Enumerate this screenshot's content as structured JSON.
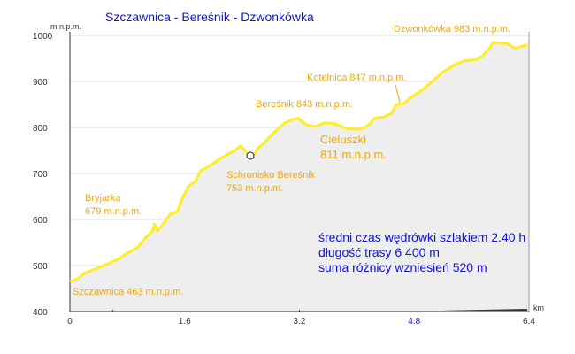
{
  "chart_data": {
    "type": "area",
    "title": "Szczawnica - Bereśnik - Dzwonkówka",
    "ylabel": "m n.p.m.",
    "xlabel": "km",
    "xlim": [
      0,
      6.4
    ],
    "ylim": [
      400,
      1000
    ],
    "x_ticks": [
      "0",
      "1.6",
      "3.2",
      "4.8",
      "6.4"
    ],
    "y_ticks": [
      "400",
      "500",
      "600",
      "700",
      "800",
      "900",
      "1000"
    ],
    "grid": "horizontal",
    "colors": {
      "line": "#FFEE22",
      "fill": "#EEEEEE",
      "labels": "#F2A900",
      "info": "#1010D8",
      "title": "#1010D8",
      "axis": "#333333",
      "grid": "#DDDDDD"
    },
    "profile": [
      [
        0.0,
        465
      ],
      [
        0.1,
        470
      ],
      [
        0.2,
        483
      ],
      [
        0.35,
        492
      ],
      [
        0.5,
        502
      ],
      [
        0.65,
        512
      ],
      [
        0.8,
        527
      ],
      [
        0.95,
        540
      ],
      [
        1.05,
        560
      ],
      [
        1.15,
        575
      ],
      [
        1.18,
        590
      ],
      [
        1.22,
        575
      ],
      [
        1.3,
        590
      ],
      [
        1.4,
        612
      ],
      [
        1.5,
        617
      ],
      [
        1.55,
        640
      ],
      [
        1.65,
        672
      ],
      [
        1.75,
        683
      ],
      [
        1.82,
        706
      ],
      [
        1.9,
        712
      ],
      [
        2.0,
        722
      ],
      [
        2.1,
        733
      ],
      [
        2.2,
        742
      ],
      [
        2.3,
        750
      ],
      [
        2.38,
        760
      ],
      [
        2.45,
        748
      ],
      [
        2.55,
        735
      ],
      [
        2.62,
        755
      ],
      [
        2.72,
        768
      ],
      [
        2.8,
        782
      ],
      [
        2.9,
        797
      ],
      [
        3.0,
        810
      ],
      [
        3.1,
        817
      ],
      [
        3.18,
        820
      ],
      [
        3.3,
        805
      ],
      [
        3.42,
        802
      ],
      [
        3.55,
        810
      ],
      [
        3.7,
        808
      ],
      [
        3.8,
        800
      ],
      [
        3.95,
        796
      ],
      [
        4.05,
        796
      ],
      [
        4.15,
        803
      ],
      [
        4.25,
        820
      ],
      [
        4.38,
        823
      ],
      [
        4.48,
        830
      ],
      [
        4.55,
        850
      ],
      [
        4.65,
        852
      ],
      [
        4.75,
        865
      ],
      [
        4.9,
        880
      ],
      [
        5.05,
        900
      ],
      [
        5.2,
        920
      ],
      [
        5.35,
        935
      ],
      [
        5.5,
        945
      ],
      [
        5.65,
        947
      ],
      [
        5.75,
        955
      ],
      [
        5.85,
        972
      ],
      [
        5.9,
        985
      ],
      [
        6.0,
        983
      ],
      [
        6.1,
        982
      ],
      [
        6.2,
        972
      ],
      [
        6.3,
        976
      ],
      [
        6.4,
        980
      ]
    ],
    "annotations": [
      {
        "id": "szczawnica",
        "lines": [
          "Szczawnica 463 m.n.p.m."
        ]
      },
      {
        "id": "bryjarka",
        "lines": [
          "Bryjarka",
          "679 m.n.p.m."
        ]
      },
      {
        "id": "schronisko",
        "lines": [
          "Schronisko Bereśnik",
          "753 m.n.p.m."
        ]
      },
      {
        "id": "beresnik",
        "lines": [
          "Bereśnik 843 m.n.p.m."
        ]
      },
      {
        "id": "cieluszki",
        "lines": [
          "Cieluszki",
          "811 m.n.p.m."
        ]
      },
      {
        "id": "kotelnica",
        "lines": [
          "Kotelnica 847 m.n.p.m."
        ]
      },
      {
        "id": "dzwonkowka",
        "lines": [
          "Dzwonkówka 983 m.n.p.m."
        ]
      }
    ],
    "info": [
      "średni czas wędrówki szlakiem 2.40 h",
      "długość trasy 6 400 m",
      "suma różnicy wzniesień 520 m"
    ]
  }
}
